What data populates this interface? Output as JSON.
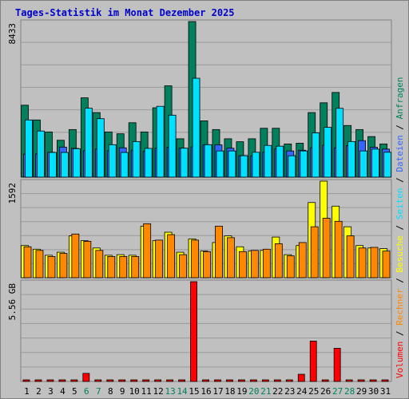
{
  "title": "Tages-Statistik im Monat Dezember 2025",
  "colors": {
    "frame": "#808080",
    "plot_bg": "#c0c0c0",
    "grid": "#999999",
    "title": "#0000cc",
    "anfragen": "#00805c",
    "dateien": "#3366ff",
    "seiten": "#00e0ff",
    "besuche": "#ffff00",
    "rechner": "#ff8800",
    "volumen": "#ff0000",
    "weekend_label": "#00805c",
    "weekday_label": "#000000"
  },
  "chart_data": [
    {
      "type": "bar",
      "title": "Tages-Statistik im Monat Dezember 2025",
      "categories": [
        "1",
        "2",
        "3",
        "4",
        "5",
        "6",
        "7",
        "8",
        "9",
        "10",
        "11",
        "12",
        "13",
        "14",
        "15",
        "16",
        "17",
        "18",
        "19",
        "20",
        "21",
        "22",
        "23",
        "24",
        "25",
        "26",
        "27",
        "28",
        "29",
        "30",
        "31"
      ],
      "weekend_days": [
        "6",
        "7",
        "13",
        "14",
        "20",
        "21",
        "27",
        "28"
      ],
      "ylim": [
        0,
        8433
      ],
      "ytick_label": "8433",
      "grid": true,
      "series": [
        {
          "name": "Anfragen",
          "values": [
            3900,
            3100,
            2450,
            2000,
            2580,
            4300,
            3500,
            2450,
            2350,
            2950,
            2450,
            3760,
            4950,
            2080,
            8433,
            3050,
            2580,
            2080,
            1920,
            2080,
            2650,
            2650,
            1800,
            1840,
            3500,
            4030,
            4590,
            2800,
            2580,
            2200,
            1800
          ]
        },
        {
          "name": "Dateien",
          "values": [
            1250,
            1260,
            1350,
            1630,
            1560,
            1430,
            1520,
            1430,
            1590,
            1460,
            1390,
            1570,
            1620,
            1570,
            1640,
            1760,
            1750,
            1570,
            1160,
            1150,
            1350,
            1530,
            1420,
            1460,
            1600,
            1730,
            1590,
            1710,
            1980,
            1620,
            1520
          ]
        },
        {
          "name": "Seiten",
          "values": [
            3100,
            2500,
            1340,
            1340,
            1540,
            3740,
            3170,
            1760,
            1340,
            1930,
            1560,
            3840,
            3360,
            1570,
            5360,
            1760,
            1420,
            1420,
            1160,
            1350,
            1720,
            1680,
            1160,
            1420,
            2400,
            2700,
            3730,
            1930,
            1420,
            1520,
            1350
          ]
        }
      ],
      "legend": "right (vertical)"
    },
    {
      "type": "bar",
      "categories": [
        "1",
        "2",
        "3",
        "4",
        "5",
        "6",
        "7",
        "8",
        "9",
        "10",
        "11",
        "12",
        "13",
        "14",
        "15",
        "16",
        "17",
        "18",
        "19",
        "20",
        "21",
        "22",
        "23",
        "24",
        "25",
        "26",
        "27",
        "28",
        "29",
        "30",
        "31"
      ],
      "ylim": [
        0,
        1592
      ],
      "ytick_label": "1592",
      "grid": true,
      "series": [
        {
          "name": "Besuche",
          "values": [
            530,
            470,
            370,
            420,
            690,
            610,
            490,
            370,
            380,
            370,
            850,
            610,
            750,
            420,
            640,
            440,
            580,
            690,
            510,
            440,
            450,
            670,
            380,
            530,
            1240,
            1592,
            1180,
            840,
            530,
            490,
            480
          ]
        },
        {
          "name": "Rechner",
          "values": [
            510,
            450,
            350,
            400,
            720,
            600,
            450,
            350,
            350,
            350,
            890,
            620,
            710,
            380,
            620,
            430,
            850,
            660,
            430,
            450,
            470,
            560,
            360,
            580,
            840,
            980,
            930,
            690,
            490,
            500,
            440
          ]
        }
      ]
    },
    {
      "type": "bar",
      "categories": [
        "1",
        "2",
        "3",
        "4",
        "5",
        "6",
        "7",
        "8",
        "9",
        "10",
        "11",
        "12",
        "13",
        "14",
        "15",
        "16",
        "17",
        "18",
        "19",
        "20",
        "21",
        "22",
        "23",
        "24",
        "25",
        "26",
        "27",
        "28",
        "29",
        "30",
        "31"
      ],
      "ylim": [
        0,
        5.56
      ],
      "ytick_label": "5.56 GB",
      "grid": true,
      "series": [
        {
          "name": "Volumen",
          "values": [
            0.05,
            0.05,
            0.05,
            0.05,
            0.05,
            0.45,
            0.05,
            0.05,
            0.05,
            0.05,
            0.05,
            0.05,
            0.05,
            0.05,
            5.56,
            0.05,
            0.05,
            0.05,
            0.05,
            0.05,
            0.05,
            0.05,
            0.05,
            0.4,
            2.25,
            0.05,
            1.85,
            0.05,
            0.05,
            0.05,
            0.05
          ]
        }
      ]
    }
  ]
}
